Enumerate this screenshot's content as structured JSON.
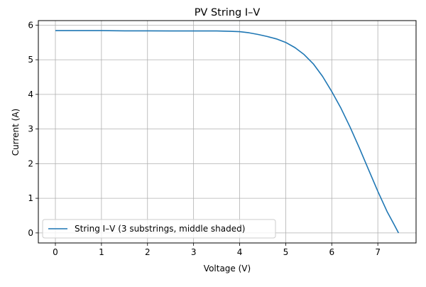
{
  "chart_data": {
    "type": "line",
    "title": "PV String I–V",
    "xlabel": "Voltage (V)",
    "ylabel": "Current (A)",
    "xlim": [
      -0.37,
      7.83
    ],
    "ylim": [
      -0.29,
      6.13
    ],
    "xticks": [
      0,
      1,
      2,
      3,
      4,
      5,
      6,
      7
    ],
    "yticks": [
      0,
      1,
      2,
      3,
      4,
      5,
      6
    ],
    "grid": true,
    "legend_position": "lower-left",
    "series": [
      {
        "name": "String I–V (3 substrings, middle shaded)",
        "color": "#1f77b4",
        "points": [
          [
            0.0,
            5.84
          ],
          [
            0.5,
            5.84
          ],
          [
            1.0,
            5.84
          ],
          [
            1.5,
            5.835
          ],
          [
            2.0,
            5.835
          ],
          [
            2.5,
            5.83
          ],
          [
            3.0,
            5.83
          ],
          [
            3.5,
            5.83
          ],
          [
            3.8,
            5.82
          ],
          [
            4.0,
            5.81
          ],
          [
            4.2,
            5.78
          ],
          [
            4.4,
            5.73
          ],
          [
            4.6,
            5.67
          ],
          [
            4.8,
            5.6
          ],
          [
            5.0,
            5.5
          ],
          [
            5.2,
            5.35
          ],
          [
            5.4,
            5.15
          ],
          [
            5.6,
            4.88
          ],
          [
            5.8,
            4.52
          ],
          [
            6.0,
            4.08
          ],
          [
            6.2,
            3.6
          ],
          [
            6.4,
            3.05
          ],
          [
            6.6,
            2.45
          ],
          [
            6.8,
            1.82
          ],
          [
            7.0,
            1.2
          ],
          [
            7.2,
            0.62
          ],
          [
            7.35,
            0.25
          ],
          [
            7.45,
            0.0
          ]
        ]
      }
    ]
  }
}
